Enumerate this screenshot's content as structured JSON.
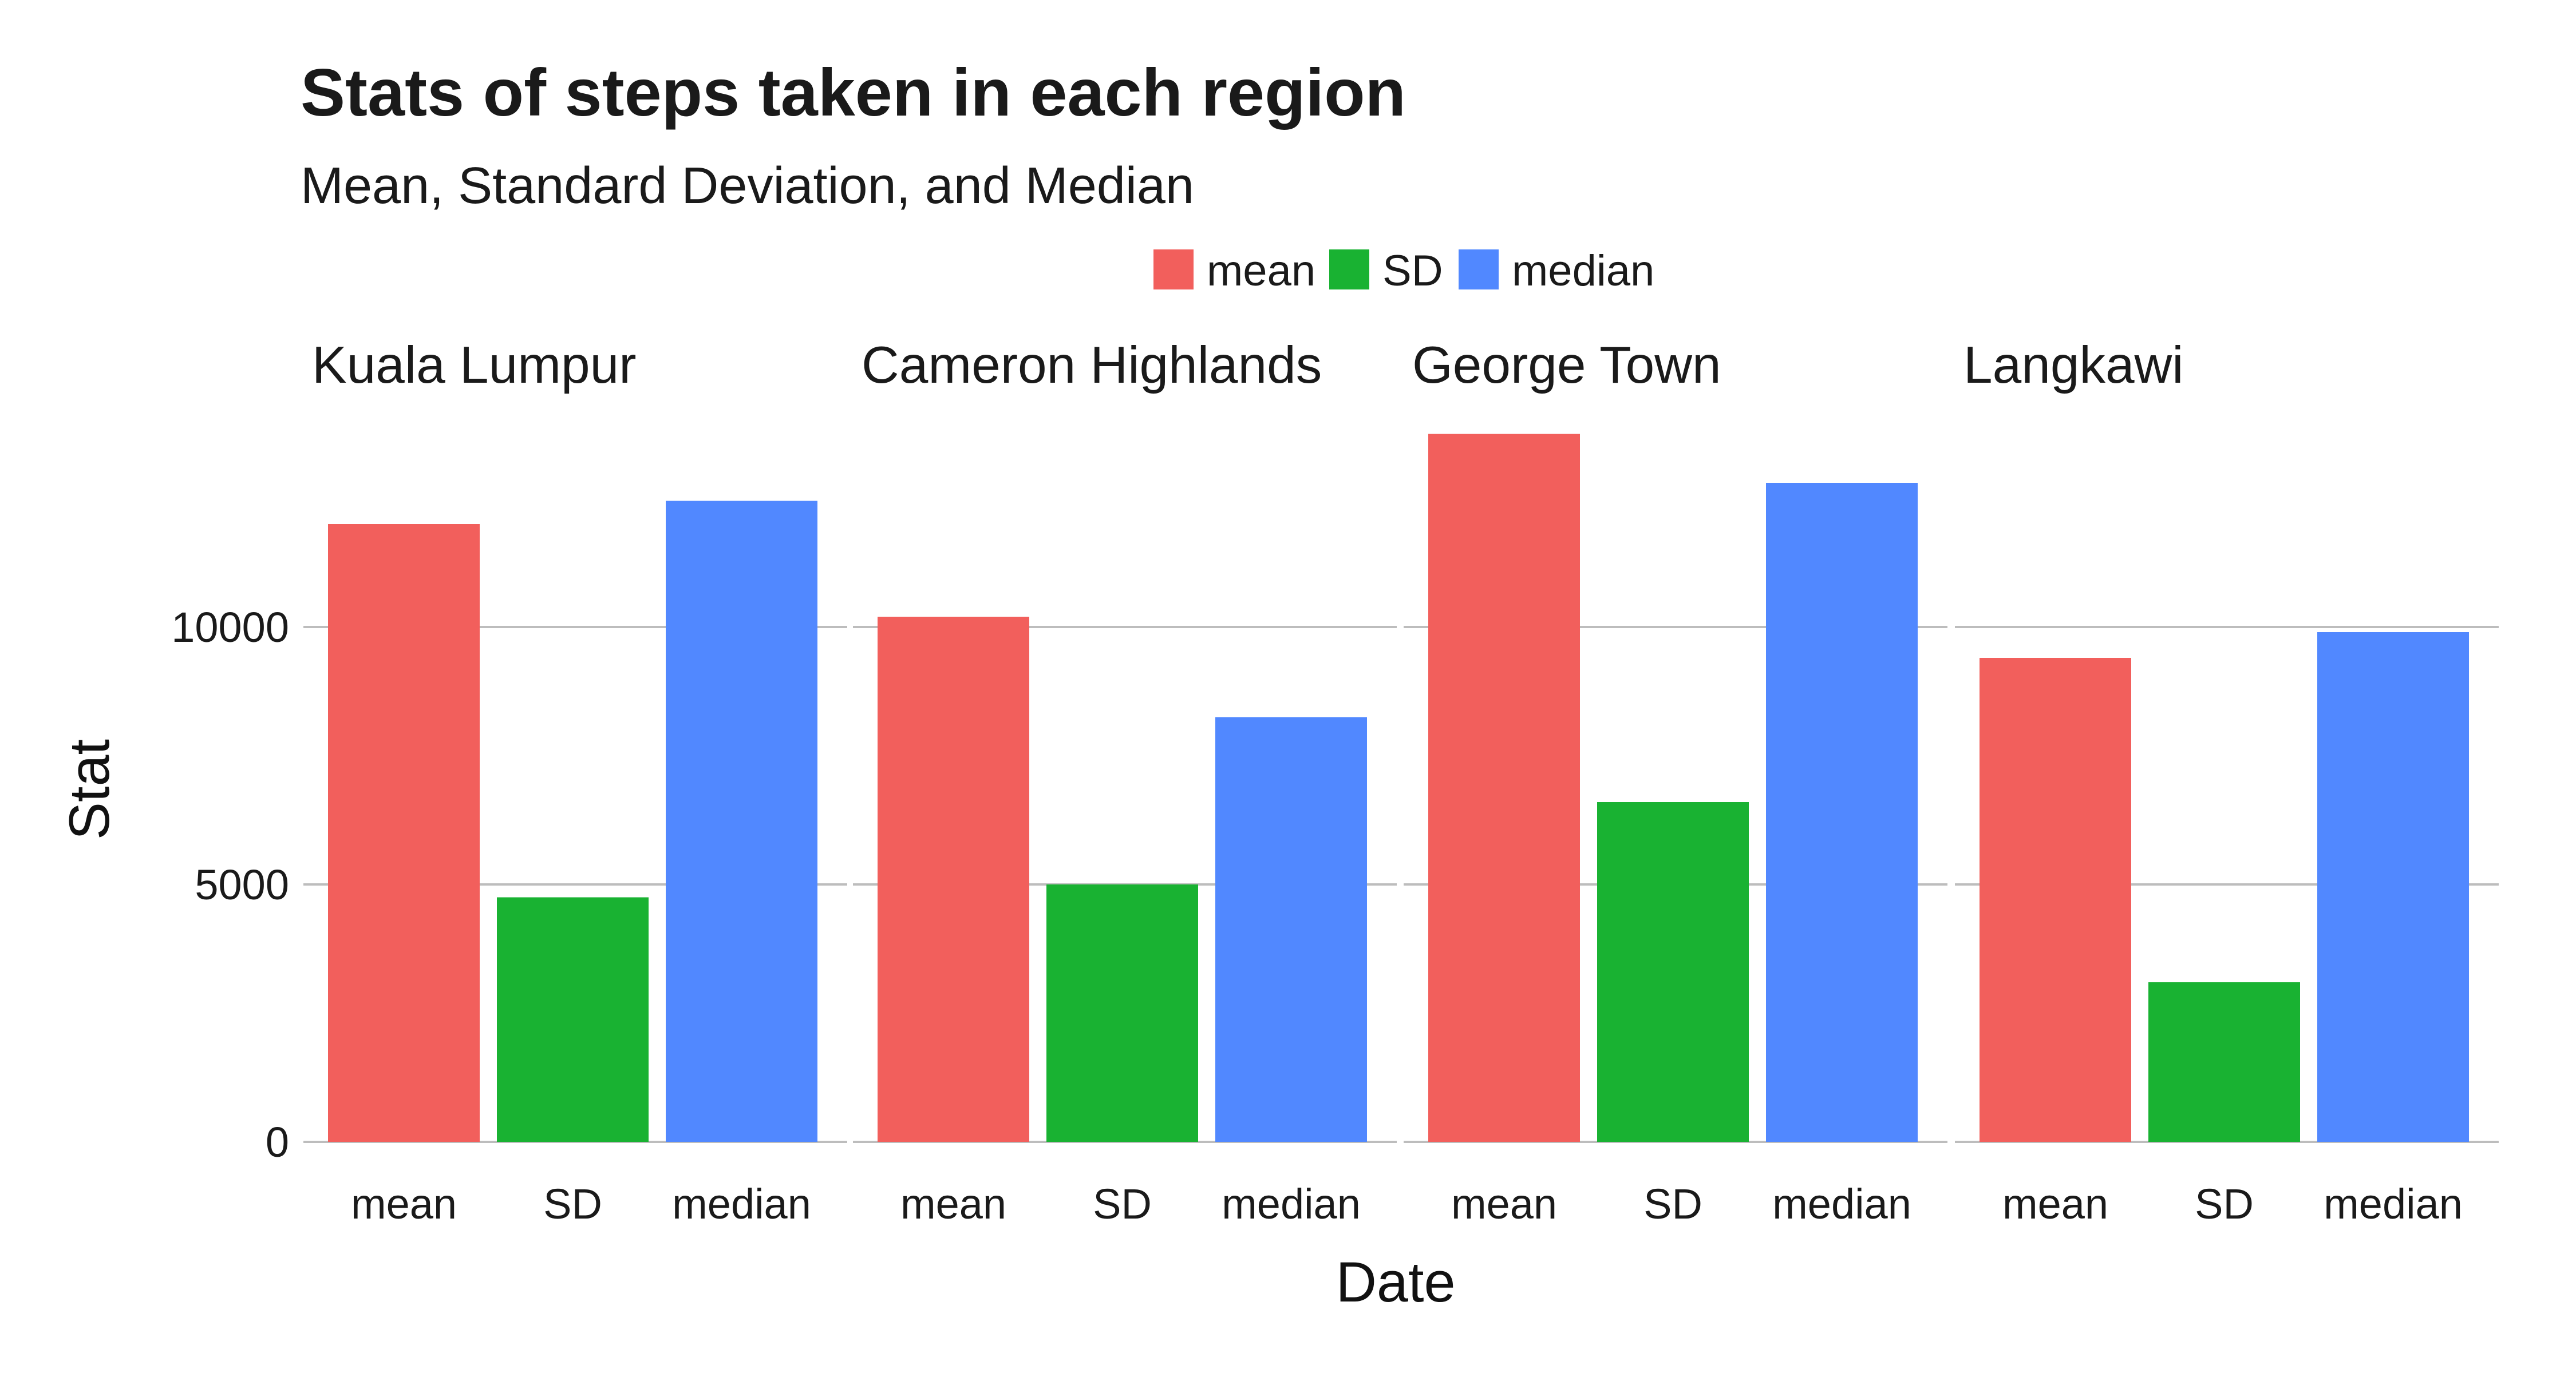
{
  "chart_data": {
    "type": "bar",
    "title": "Stats of steps taken in each region",
    "subtitle": "Mean, Standard Deviation, and Median",
    "xlabel": "Date",
    "ylabel": "Stat",
    "ylim": [
      0,
      14000
    ],
    "yticks": [
      0,
      5000,
      10000
    ],
    "ytick_labels": [
      "0",
      "5000",
      "10000"
    ],
    "grid": true,
    "legend_position": "top",
    "legend": [
      {
        "label": "mean",
        "color": "#f25f5c"
      },
      {
        "label": "SD",
        "color": "#19b232"
      },
      {
        "label": "median",
        "color": "#5188ff"
      }
    ],
    "categories": [
      "mean",
      "SD",
      "median"
    ],
    "panels": [
      {
        "name": "Kuala Lumpur",
        "values": [
          12000,
          4750,
          12450
        ]
      },
      {
        "name": "Cameron Highlands",
        "values": [
          10200,
          5000,
          8250
        ]
      },
      {
        "name": "George Town",
        "values": [
          13750,
          6600,
          12800
        ]
      },
      {
        "name": "Langkawi",
        "values": [
          9400,
          3100,
          9900
        ]
      }
    ]
  }
}
